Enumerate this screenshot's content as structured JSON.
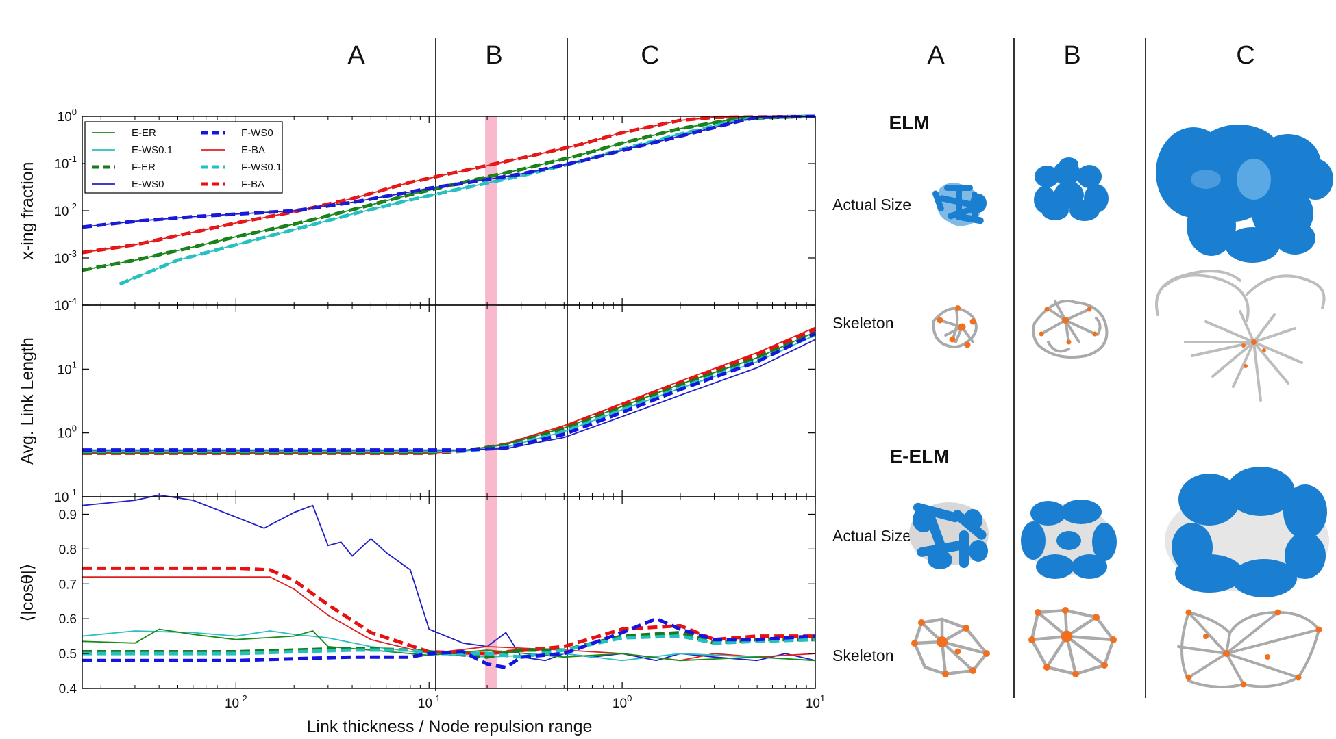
{
  "figure": {
    "left_regions": [
      "A",
      "B",
      "C"
    ],
    "right_regions": [
      "A",
      "B",
      "C"
    ],
    "xlabel": "Link thickness / Node repulsion range"
  },
  "legend": [
    {
      "label": "E-ER",
      "color": "#1a8a1a",
      "style": "solid"
    },
    {
      "label": "E-WS0.1",
      "color": "#2bbfbf",
      "style": "solid"
    },
    {
      "label": "F-ER",
      "color": "#1a7a1a",
      "style": "dashed"
    },
    {
      "label": "E-WS0",
      "color": "#2020c8",
      "style": "solid"
    },
    {
      "label": "F-WS0",
      "color": "#1515e0",
      "style": "dashed"
    },
    {
      "label": "E-BA",
      "color": "#e02020",
      "style": "solid"
    },
    {
      "label": "F-WS0.1",
      "color": "#25bfbf",
      "style": "dashed"
    },
    {
      "label": "F-BA",
      "color": "#e81010",
      "style": "dashed"
    }
  ],
  "chart_data": [
    {
      "type": "line",
      "ylabel": "x-ing fraction",
      "xscale": "log",
      "yscale": "log",
      "xlim": [
        0.0016,
        10
      ],
      "ylim": [
        0.0001,
        1
      ],
      "xticks": [
        "10-2",
        "10-1",
        "100",
        "101"
      ],
      "yticks": [
        "10-4",
        "10-3",
        "10-2",
        "10-1",
        "100"
      ],
      "vlines": [
        0.1,
        0.5
      ],
      "highlight_band": [
        0.2,
        0.22
      ],
      "series": [
        {
          "name": "F-BA",
          "x": [
            0.0016,
            0.003,
            0.006,
            0.01,
            0.02,
            0.04,
            0.08,
            0.15,
            0.3,
            0.6,
            1,
            2,
            3,
            10
          ],
          "y": [
            0.0013,
            0.0019,
            0.0035,
            0.0055,
            0.0095,
            0.018,
            0.04,
            0.07,
            0.13,
            0.25,
            0.45,
            0.82,
            0.95,
            1
          ]
        },
        {
          "name": "E-BA",
          "x": [
            0.0016,
            0.003,
            0.006,
            0.01,
            0.02,
            0.04,
            0.08,
            0.15,
            0.3,
            0.6,
            1,
            2,
            3,
            10
          ],
          "y": [
            0.0013,
            0.0019,
            0.0035,
            0.0055,
            0.0095,
            0.018,
            0.04,
            0.07,
            0.13,
            0.25,
            0.45,
            0.82,
            0.95,
            1
          ]
        },
        {
          "name": "F-ER",
          "x": [
            0.0016,
            0.003,
            0.006,
            0.01,
            0.02,
            0.04,
            0.08,
            0.15,
            0.3,
            0.6,
            1,
            2,
            4,
            10
          ],
          "y": [
            0.00055,
            0.0009,
            0.0017,
            0.0028,
            0.0052,
            0.0105,
            0.022,
            0.04,
            0.075,
            0.15,
            0.27,
            0.55,
            0.9,
            1
          ]
        },
        {
          "name": "E-ER",
          "x": [
            0.0016,
            0.003,
            0.006,
            0.01,
            0.02,
            0.04,
            0.08,
            0.15,
            0.3,
            0.6,
            1,
            2,
            4,
            10
          ],
          "y": [
            0.00055,
            0.0009,
            0.0017,
            0.0028,
            0.0052,
            0.0105,
            0.022,
            0.04,
            0.075,
            0.15,
            0.27,
            0.55,
            0.9,
            1
          ]
        },
        {
          "name": "F-WS0.1",
          "x": [
            0.0025,
            0.005,
            0.01,
            0.02,
            0.04,
            0.08,
            0.15,
            0.3,
            0.6,
            1,
            2,
            4,
            5,
            10
          ],
          "y": [
            0.00028,
            0.0009,
            0.0019,
            0.004,
            0.0085,
            0.017,
            0.03,
            0.055,
            0.11,
            0.2,
            0.42,
            0.82,
            0.95,
            1
          ]
        },
        {
          "name": "E-WS0.1",
          "x": [
            0.0025,
            0.005,
            0.01,
            0.02,
            0.04,
            0.08,
            0.15,
            0.3,
            0.6,
            1,
            2,
            4,
            5,
            10
          ],
          "y": [
            0.00028,
            0.0009,
            0.0019,
            0.004,
            0.0085,
            0.017,
            0.03,
            0.055,
            0.11,
            0.2,
            0.42,
            0.82,
            0.95,
            1
          ]
        },
        {
          "name": "F-WS0",
          "x": [
            0.0016,
            0.003,
            0.006,
            0.01,
            0.02,
            0.04,
            0.08,
            0.1,
            0.15,
            0.3,
            0.6,
            1,
            2,
            4,
            5,
            10
          ],
          "y": [
            0.0045,
            0.006,
            0.0075,
            0.0085,
            0.01,
            0.015,
            0.025,
            0.03,
            0.038,
            0.06,
            0.11,
            0.19,
            0.38,
            0.78,
            0.95,
            1
          ]
        },
        {
          "name": "E-WS0",
          "x": [
            0.0016,
            0.003,
            0.006,
            0.01,
            0.02,
            0.04,
            0.08,
            0.1,
            0.15,
            0.3,
            0.6,
            1,
            2,
            4,
            5,
            10
          ],
          "y": [
            0.0045,
            0.006,
            0.0075,
            0.0085,
            0.01,
            0.015,
            0.025,
            0.03,
            0.038,
            0.06,
            0.11,
            0.19,
            0.38,
            0.78,
            0.95,
            1
          ]
        }
      ]
    },
    {
      "type": "line",
      "ylabel": "Avg. Link Length",
      "xscale": "log",
      "yscale": "log",
      "xlim": [
        0.0016,
        10
      ],
      "ylim": [
        0.1,
        100
      ],
      "xticks": [
        "10-2",
        "10-1",
        "100",
        "101"
      ],
      "yticks": [
        "10-1",
        "100",
        "101"
      ],
      "vlines": [
        0.1,
        0.5
      ],
      "highlight_band": [
        0.2,
        0.22
      ],
      "series": [
        {
          "name": "E-BA",
          "x": [
            0.0016,
            0.01,
            0.1,
            0.15,
            0.25,
            0.5,
            1,
            2,
            5,
            10
          ],
          "y": [
            0.48,
            0.48,
            0.48,
            0.52,
            0.68,
            1.3,
            2.9,
            6.5,
            18,
            45
          ]
        },
        {
          "name": "F-BA",
          "x": [
            0.0016,
            0.01,
            0.1,
            0.15,
            0.25,
            0.5,
            1,
            2,
            5,
            10
          ],
          "y": [
            0.48,
            0.48,
            0.48,
            0.52,
            0.66,
            1.25,
            2.8,
            6.2,
            17,
            42
          ]
        },
        {
          "name": "E-ER",
          "x": [
            0.0016,
            0.01,
            0.1,
            0.15,
            0.25,
            0.5,
            1,
            2,
            5,
            10
          ],
          "y": [
            0.5,
            0.5,
            0.5,
            0.53,
            0.66,
            1.2,
            2.6,
            5.8,
            15,
            38
          ]
        },
        {
          "name": "F-ER",
          "x": [
            0.0016,
            0.01,
            0.1,
            0.15,
            0.25,
            0.5,
            1,
            2,
            5,
            10
          ],
          "y": [
            0.5,
            0.5,
            0.5,
            0.53,
            0.64,
            1.15,
            2.5,
            5.6,
            15,
            37
          ]
        },
        {
          "name": "E-WS0.1",
          "x": [
            0.0016,
            0.01,
            0.1,
            0.15,
            0.25,
            0.5,
            1,
            2,
            5,
            10
          ],
          "y": [
            0.52,
            0.52,
            0.52,
            0.52,
            0.6,
            1.05,
            2.3,
            5,
            13,
            34
          ]
        },
        {
          "name": "F-WS0.1",
          "x": [
            0.0016,
            0.01,
            0.1,
            0.15,
            0.25,
            0.5,
            1,
            2,
            5,
            10
          ],
          "y": [
            0.52,
            0.52,
            0.52,
            0.52,
            0.6,
            1.05,
            2.3,
            5.1,
            13.5,
            35
          ]
        },
        {
          "name": "F-WS0",
          "x": [
            0.0016,
            0.01,
            0.1,
            0.15,
            0.25,
            0.5,
            1,
            2,
            5,
            10
          ],
          "y": [
            0.54,
            0.54,
            0.54,
            0.54,
            0.58,
            0.95,
            2.1,
            4.8,
            13,
            36
          ]
        },
        {
          "name": "E-WS0",
          "x": [
            0.0016,
            0.01,
            0.1,
            0.15,
            0.25,
            0.5,
            1,
            2,
            5,
            10
          ],
          "y": [
            0.54,
            0.54,
            0.54,
            0.54,
            0.57,
            0.85,
            1.8,
            3.9,
            10.5,
            29
          ]
        }
      ]
    },
    {
      "type": "line",
      "ylabel": "⟨|cosθ|⟩",
      "xscale": "log",
      "yscale": "linear",
      "xlim": [
        0.0016,
        10
      ],
      "ylim": [
        0.4,
        0.95
      ],
      "xticks": [
        "10-2",
        "10-1",
        "100",
        "101"
      ],
      "yticks": [
        "0.4",
        "0.5",
        "0.6",
        "0.7",
        "0.8",
        "0.9"
      ],
      "vlines": [
        0.1,
        0.5
      ],
      "highlight_band": [
        0.2,
        0.22
      ],
      "series": [
        {
          "name": "E-WS0",
          "x": [
            0.0016,
            0.003,
            0.004,
            0.006,
            0.014,
            0.02,
            0.025,
            0.03,
            0.035,
            0.04,
            0.05,
            0.06,
            0.08,
            0.1,
            0.15,
            0.2,
            0.25,
            0.3,
            0.4,
            0.5,
            0.7,
            1,
            1.5,
            2,
            3,
            5,
            7,
            10
          ],
          "y": [
            0.925,
            0.94,
            0.955,
            0.94,
            0.86,
            0.905,
            0.925,
            0.81,
            0.82,
            0.78,
            0.83,
            0.79,
            0.74,
            0.57,
            0.53,
            0.52,
            0.56,
            0.49,
            0.48,
            0.5,
            0.49,
            0.5,
            0.48,
            0.5,
            0.49,
            0.48,
            0.5,
            0.48
          ]
        },
        {
          "name": "F-BA",
          "x": [
            0.0016,
            0.005,
            0.01,
            0.015,
            0.02,
            0.03,
            0.05,
            0.1,
            0.2,
            0.5,
            1,
            2,
            3,
            5,
            10
          ],
          "y": [
            0.745,
            0.745,
            0.745,
            0.74,
            0.71,
            0.64,
            0.56,
            0.505,
            0.5,
            0.52,
            0.57,
            0.58,
            0.54,
            0.55,
            0.55
          ]
        },
        {
          "name": "E-BA",
          "x": [
            0.0016,
            0.005,
            0.01,
            0.015,
            0.02,
            0.03,
            0.05,
            0.1,
            0.2,
            0.5,
            1,
            2,
            3,
            5,
            10
          ],
          "y": [
            0.72,
            0.72,
            0.72,
            0.72,
            0.685,
            0.61,
            0.54,
            0.5,
            0.52,
            0.51,
            0.5,
            0.48,
            0.5,
            0.49,
            0.5
          ]
        },
        {
          "name": "E-WS0.1",
          "x": [
            0.0016,
            0.003,
            0.006,
            0.01,
            0.015,
            0.02,
            0.03,
            0.05,
            0.1,
            0.2,
            0.5,
            1,
            2,
            5,
            10
          ],
          "y": [
            0.55,
            0.565,
            0.56,
            0.55,
            0.565,
            0.555,
            0.545,
            0.52,
            0.5,
            0.49,
            0.5,
            0.48,
            0.5,
            0.49,
            0.48
          ]
        },
        {
          "name": "E-ER",
          "x": [
            0.0016,
            0.003,
            0.004,
            0.006,
            0.01,
            0.02,
            0.025,
            0.03,
            0.05,
            0.1,
            0.2,
            0.5,
            1,
            2,
            5,
            10
          ],
          "y": [
            0.535,
            0.53,
            0.57,
            0.555,
            0.54,
            0.55,
            0.565,
            0.52,
            0.51,
            0.495,
            0.51,
            0.49,
            0.5,
            0.48,
            0.49,
            0.48
          ]
        },
        {
          "name": "F-ER",
          "x": [
            0.0016,
            0.005,
            0.01,
            0.02,
            0.04,
            0.08,
            0.1,
            0.2,
            0.3,
            0.5,
            1,
            2,
            3,
            5,
            10
          ],
          "y": [
            0.505,
            0.505,
            0.505,
            0.51,
            0.515,
            0.51,
            0.505,
            0.49,
            0.51,
            0.51,
            0.55,
            0.56,
            0.53,
            0.54,
            0.54
          ]
        },
        {
          "name": "F-WS0.1",
          "x": [
            0.0016,
            0.005,
            0.01,
            0.02,
            0.04,
            0.08,
            0.1,
            0.2,
            0.3,
            0.5,
            1,
            2,
            3,
            5,
            10
          ],
          "y": [
            0.5,
            0.5,
            0.5,
            0.505,
            0.51,
            0.51,
            0.5,
            0.5,
            0.49,
            0.51,
            0.545,
            0.55,
            0.53,
            0.535,
            0.54
          ]
        },
        {
          "name": "F-WS0",
          "x": [
            0.0016,
            0.005,
            0.01,
            0.02,
            0.04,
            0.08,
            0.1,
            0.15,
            0.2,
            0.25,
            0.3,
            0.5,
            1,
            1.5,
            2,
            3,
            5,
            10
          ],
          "y": [
            0.48,
            0.48,
            0.48,
            0.485,
            0.49,
            0.49,
            0.5,
            0.505,
            0.47,
            0.46,
            0.49,
            0.5,
            0.56,
            0.6,
            0.57,
            0.54,
            0.54,
            0.55
          ]
        }
      ]
    }
  ],
  "panel": {
    "sections": [
      {
        "title": "ELM",
        "rows": [
          "Actual Size",
          "Skeleton"
        ]
      },
      {
        "title": "E-ELM",
        "rows": [
          "Actual Size",
          "Skeleton"
        ]
      }
    ],
    "blob_color": "#1a7fd0",
    "node_color": "#f07020",
    "skeleton_color": "#aaaaaa"
  }
}
